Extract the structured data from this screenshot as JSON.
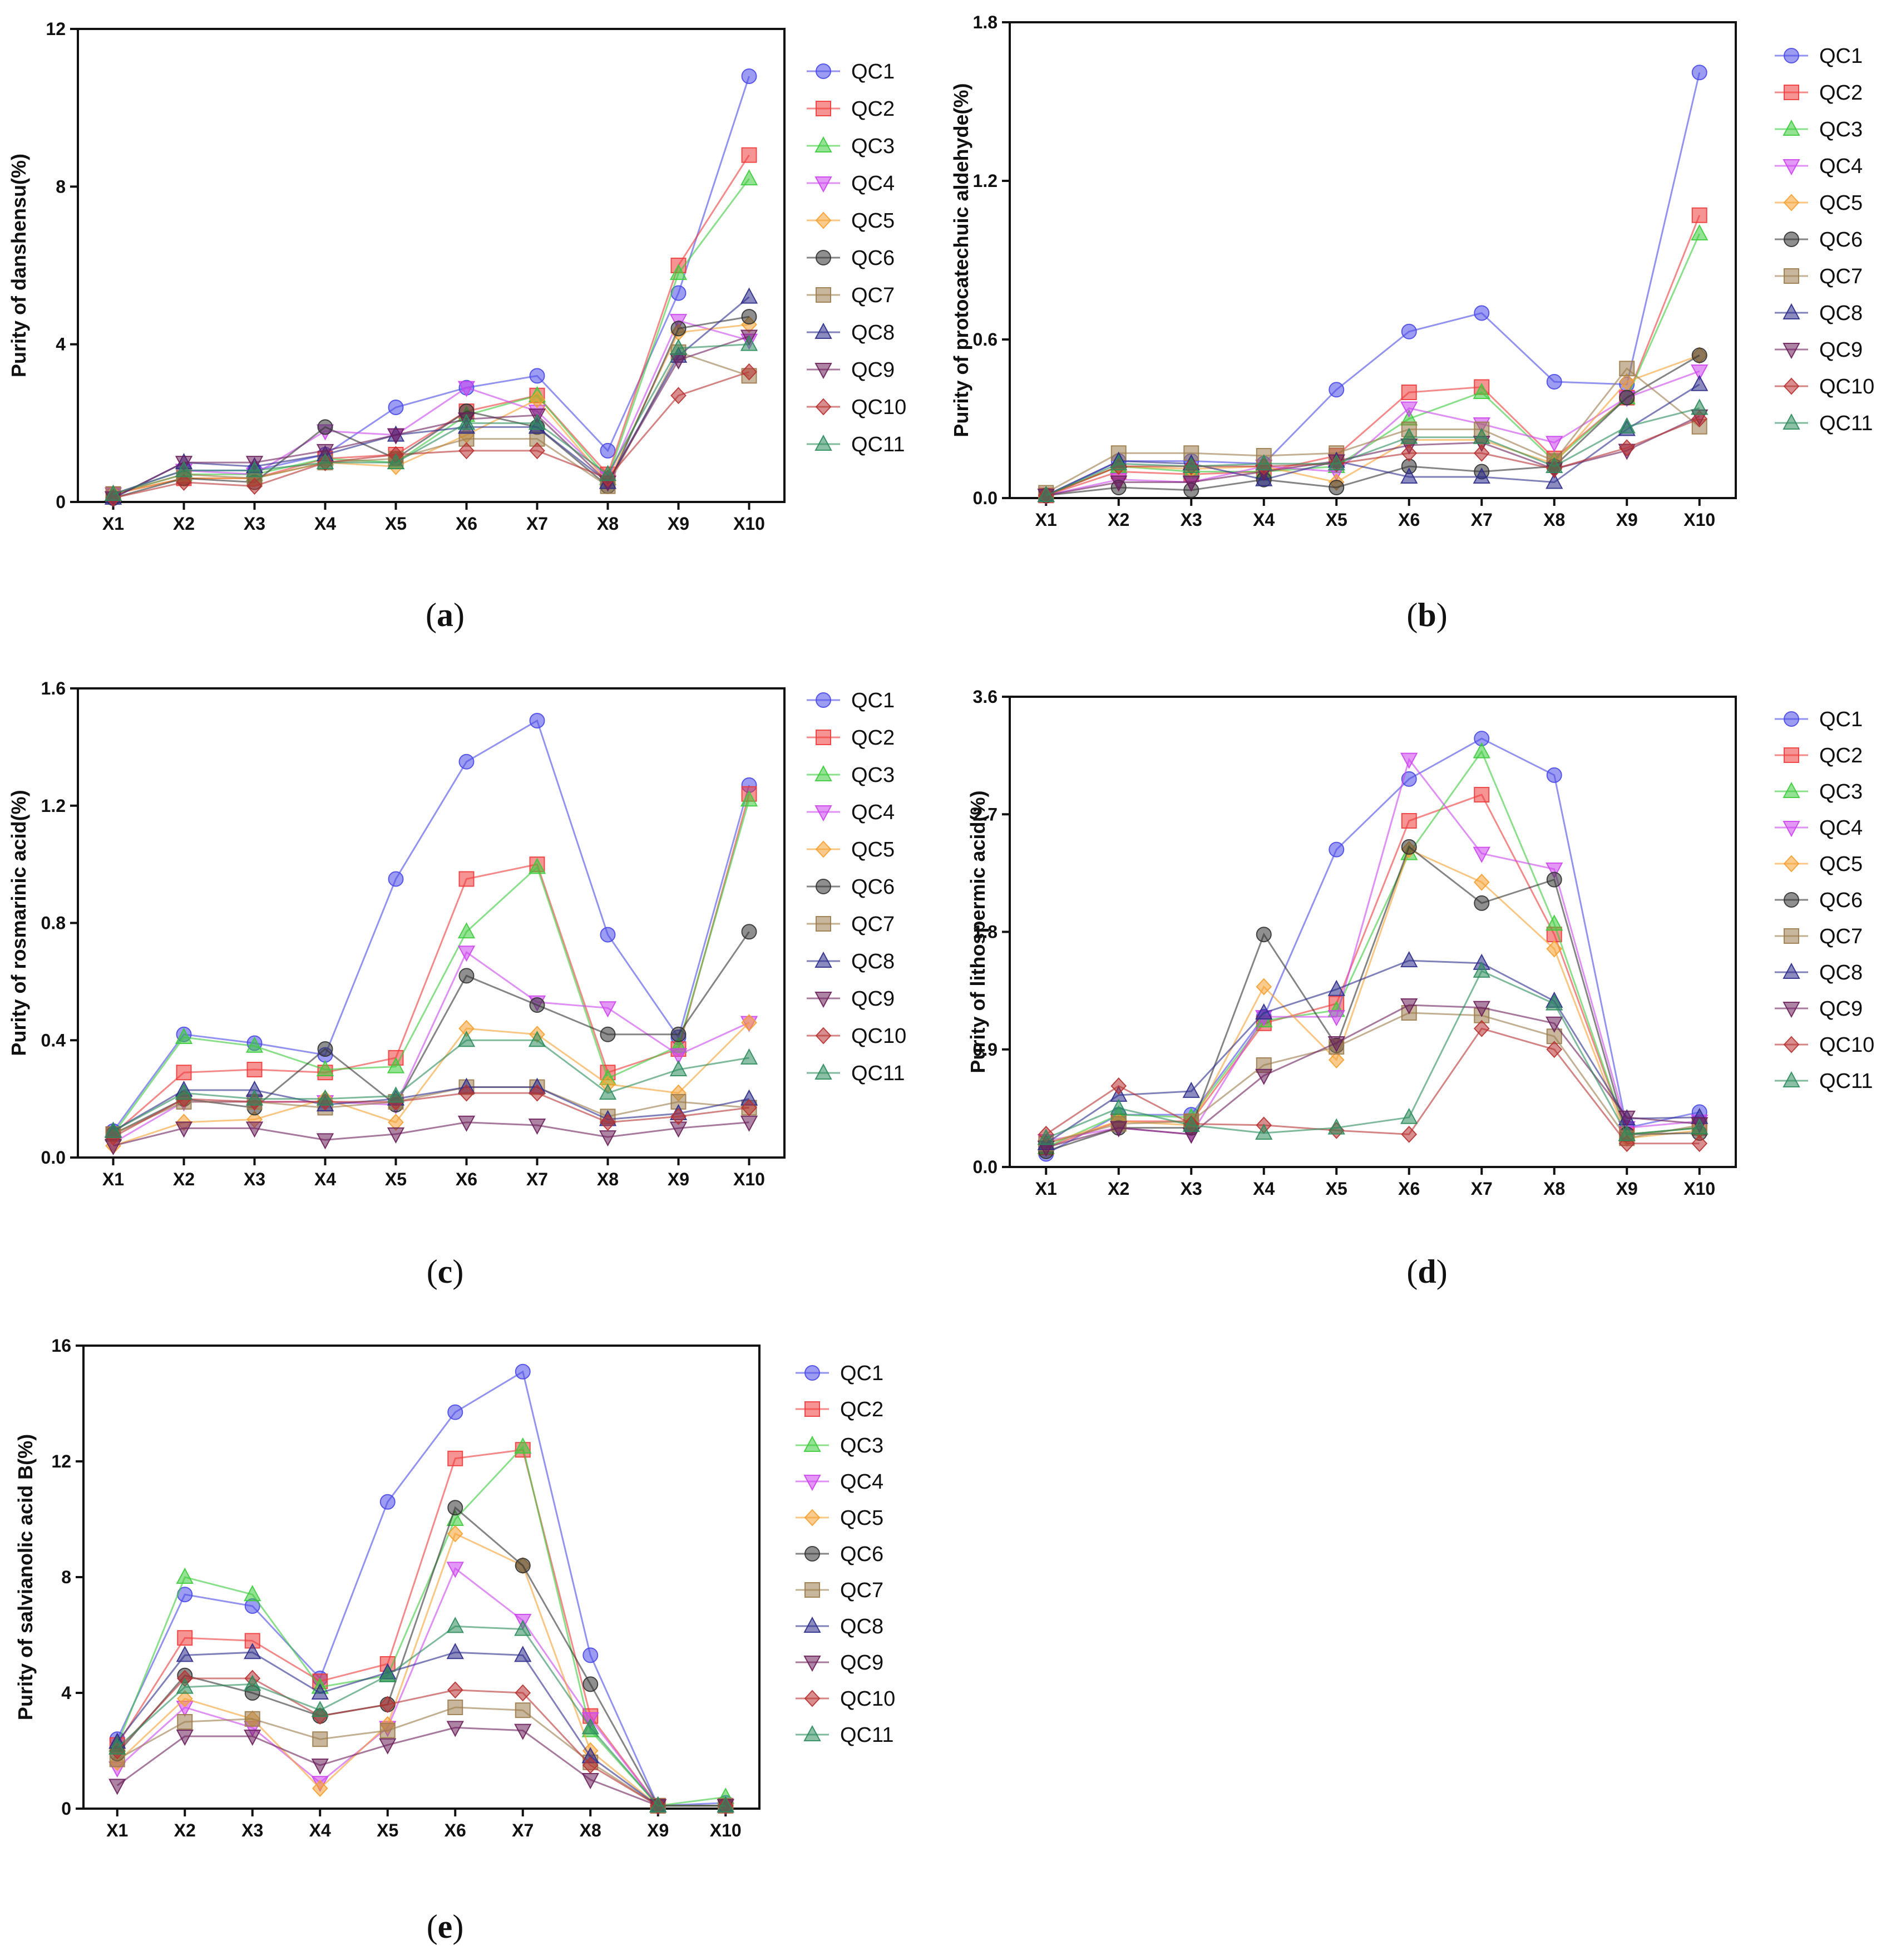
{
  "series_colors": [
    "#4a4ae8",
    "#ee3b3b",
    "#3ccc3c",
    "#cc44ee",
    "#f5a030",
    "#333333",
    "#9b7b4b",
    "#2c2c8c",
    "#6b1f5b",
    "#b83232",
    "#2c8c5c"
  ],
  "series_markers": [
    "circle",
    "square",
    "triangle-up",
    "triangle-down",
    "diamond",
    "circle",
    "square",
    "triangle-up",
    "triangle-down",
    "diamond",
    "triangle-up"
  ],
  "chart_data": [
    {
      "id": "a",
      "type": "line",
      "panel_label": "a",
      "ylabel": "Purity of danshensu(%)",
      "ylim": [
        0,
        12
      ],
      "yticks": [
        "0",
        "4",
        "8",
        "12"
      ],
      "categories": [
        "X1",
        "X2",
        "X3",
        "X4",
        "X5",
        "X6",
        "X7",
        "X8",
        "X9",
        "X10"
      ],
      "series": [
        {
          "name": "QC1",
          "values": [
            0.2,
            0.8,
            0.8,
            1.2,
            2.4,
            2.9,
            3.2,
            1.3,
            5.3,
            10.8
          ]
        },
        {
          "name": "QC2",
          "values": [
            0.2,
            0.6,
            0.6,
            1.1,
            1.2,
            2.3,
            2.7,
            0.7,
            6.0,
            8.8
          ]
        },
        {
          "name": "QC3",
          "values": [
            0.2,
            0.7,
            0.7,
            1.1,
            1.0,
            2.2,
            2.7,
            0.6,
            5.8,
            8.2
          ]
        },
        {
          "name": "QC4",
          "values": [
            0.2,
            0.8,
            0.7,
            1.8,
            1.7,
            2.9,
            2.3,
            0.6,
            4.6,
            4.1
          ]
        },
        {
          "name": "QC5",
          "values": [
            0.2,
            0.6,
            0.6,
            1.0,
            0.9,
            1.7,
            2.6,
            0.5,
            4.3,
            4.5
          ]
        },
        {
          "name": "QC6",
          "values": [
            0.1,
            0.6,
            0.5,
            1.9,
            1.1,
            2.3,
            1.9,
            0.4,
            4.4,
            4.7
          ]
        },
        {
          "name": "QC7",
          "values": [
            0.2,
            0.7,
            0.6,
            1.0,
            1.1,
            1.6,
            1.6,
            0.4,
            3.8,
            3.2
          ]
        },
        {
          "name": "QC8",
          "values": [
            0.1,
            1.0,
            0.9,
            1.2,
            1.7,
            1.9,
            1.9,
            0.5,
            3.7,
            5.2
          ]
        },
        {
          "name": "QC9",
          "values": [
            0.1,
            1.0,
            1.0,
            1.3,
            1.7,
            2.1,
            2.2,
            0.5,
            3.6,
            4.2
          ]
        },
        {
          "name": "QC10",
          "values": [
            0.1,
            0.5,
            0.4,
            1.0,
            1.2,
            1.3,
            1.3,
            0.6,
            2.7,
            3.3
          ]
        },
        {
          "name": "QC11",
          "values": [
            0.2,
            0.8,
            0.8,
            1.0,
            1.0,
            2.0,
            2.0,
            0.7,
            3.9,
            4.0
          ]
        }
      ]
    },
    {
      "id": "b",
      "type": "line",
      "panel_label": "b",
      "ylabel": "Purity of protocatechuic aldehyde(%)",
      "ylim": [
        0,
        1.8
      ],
      "yticks": [
        "0.0",
        "0.6",
        "1.2",
        "1.8"
      ],
      "categories": [
        "X1",
        "X2",
        "X3",
        "X4",
        "X5",
        "X6",
        "X7",
        "X8",
        "X9",
        "X10"
      ],
      "series": [
        {
          "name": "QC1",
          "values": [
            0.01,
            0.14,
            0.14,
            0.13,
            0.41,
            0.63,
            0.7,
            0.44,
            0.43,
            1.61
          ]
        },
        {
          "name": "QC2",
          "values": [
            0.01,
            0.1,
            0.09,
            0.1,
            0.16,
            0.4,
            0.42,
            0.15,
            0.38,
            1.07
          ]
        },
        {
          "name": "QC3",
          "values": [
            0.01,
            0.12,
            0.1,
            0.1,
            0.12,
            0.3,
            0.4,
            0.14,
            0.38,
            1.0
          ]
        },
        {
          "name": "QC4",
          "values": [
            0.01,
            0.07,
            0.06,
            0.12,
            0.1,
            0.34,
            0.28,
            0.21,
            0.38,
            0.48
          ]
        },
        {
          "name": "QC5",
          "values": [
            0.01,
            0.12,
            0.11,
            0.12,
            0.06,
            0.22,
            0.22,
            0.13,
            0.44,
            0.54
          ]
        },
        {
          "name": "QC6",
          "values": [
            0.01,
            0.04,
            0.03,
            0.07,
            0.04,
            0.12,
            0.1,
            0.12,
            0.38,
            0.54
          ]
        },
        {
          "name": "QC7",
          "values": [
            0.02,
            0.17,
            0.17,
            0.16,
            0.17,
            0.26,
            0.26,
            0.14,
            0.49,
            0.27
          ]
        },
        {
          "name": "QC8",
          "values": [
            0.01,
            0.14,
            0.13,
            0.07,
            0.14,
            0.08,
            0.08,
            0.06,
            0.26,
            0.43
          ]
        },
        {
          "name": "QC9",
          "values": [
            0.01,
            0.06,
            0.06,
            0.1,
            0.14,
            0.2,
            0.21,
            0.11,
            0.18,
            0.31
          ]
        },
        {
          "name": "QC10",
          "values": [
            0.01,
            0.12,
            0.12,
            0.12,
            0.13,
            0.17,
            0.17,
            0.11,
            0.19,
            0.3
          ]
        },
        {
          "name": "QC11",
          "values": [
            0.01,
            0.13,
            0.12,
            0.13,
            0.13,
            0.23,
            0.23,
            0.12,
            0.27,
            0.34
          ]
        }
      ]
    },
    {
      "id": "c",
      "type": "line",
      "panel_label": "c",
      "ylabel": "Purity of rosmarinic acid(%)",
      "ylim": [
        0,
        1.6
      ],
      "yticks": [
        "0.0",
        "0.4",
        "0.8",
        "1.2",
        "1.6"
      ],
      "categories": [
        "X1",
        "X2",
        "X3",
        "X4",
        "X5",
        "X6",
        "X7",
        "X8",
        "X9",
        "X10"
      ],
      "series": [
        {
          "name": "QC1",
          "values": [
            0.09,
            0.42,
            0.39,
            0.35,
            0.95,
            1.35,
            1.49,
            0.76,
            0.41,
            1.27
          ]
        },
        {
          "name": "QC2",
          "values": [
            0.08,
            0.29,
            0.3,
            0.29,
            0.34,
            0.95,
            1.0,
            0.29,
            0.37,
            1.24
          ]
        },
        {
          "name": "QC3",
          "values": [
            0.08,
            0.41,
            0.38,
            0.3,
            0.31,
            0.77,
            0.99,
            0.27,
            0.38,
            1.22
          ]
        },
        {
          "name": "QC4",
          "values": [
            0.05,
            0.19,
            0.19,
            0.19,
            0.18,
            0.7,
            0.53,
            0.51,
            0.35,
            0.46
          ]
        },
        {
          "name": "QC5",
          "values": [
            0.04,
            0.12,
            0.13,
            0.2,
            0.12,
            0.44,
            0.42,
            0.25,
            0.22,
            0.46
          ]
        },
        {
          "name": "QC6",
          "values": [
            0.08,
            0.2,
            0.17,
            0.37,
            0.18,
            0.62,
            0.52,
            0.42,
            0.42,
            0.77
          ]
        },
        {
          "name": "QC7",
          "values": [
            0.08,
            0.19,
            0.19,
            0.17,
            0.19,
            0.24,
            0.24,
            0.14,
            0.19,
            0.17
          ]
        },
        {
          "name": "QC8",
          "values": [
            0.09,
            0.23,
            0.23,
            0.18,
            0.2,
            0.24,
            0.24,
            0.13,
            0.15,
            0.2
          ]
        },
        {
          "name": "QC9",
          "values": [
            0.04,
            0.1,
            0.1,
            0.06,
            0.08,
            0.12,
            0.11,
            0.07,
            0.1,
            0.12
          ]
        },
        {
          "name": "QC10",
          "values": [
            0.07,
            0.2,
            0.19,
            0.19,
            0.19,
            0.22,
            0.22,
            0.12,
            0.14,
            0.17
          ]
        },
        {
          "name": "QC11",
          "values": [
            0.09,
            0.22,
            0.2,
            0.2,
            0.21,
            0.4,
            0.4,
            0.22,
            0.3,
            0.34
          ]
        }
      ]
    },
    {
      "id": "d",
      "type": "line",
      "panel_label": "d",
      "ylabel": "Purity of lithospermic acid(%)",
      "ylim": [
        0,
        3.6
      ],
      "yticks": [
        "0.0",
        "0.9",
        "1.8",
        "2.7",
        "3.6"
      ],
      "categories": [
        "X1",
        "X2",
        "X3",
        "X4",
        "X5",
        "X6",
        "X7",
        "X8",
        "X9",
        "X10"
      ],
      "series": [
        {
          "name": "QC1",
          "values": [
            0.1,
            0.4,
            0.4,
            1.15,
            2.43,
            2.97,
            3.28,
            3.0,
            0.3,
            0.42
          ]
        },
        {
          "name": "QC2",
          "values": [
            0.15,
            0.35,
            0.35,
            1.1,
            1.25,
            2.65,
            2.85,
            1.78,
            0.25,
            0.3
          ]
        },
        {
          "name": "QC3",
          "values": [
            0.15,
            0.4,
            0.38,
            1.12,
            1.2,
            2.4,
            3.18,
            1.86,
            0.25,
            0.3
          ]
        },
        {
          "name": "QC4",
          "values": [
            0.2,
            0.3,
            0.25,
            1.15,
            1.15,
            3.12,
            2.4,
            2.28,
            0.3,
            0.35
          ]
        },
        {
          "name": "QC5",
          "values": [
            0.18,
            0.35,
            0.32,
            1.38,
            0.82,
            2.43,
            2.18,
            1.67,
            0.22,
            0.28
          ]
        },
        {
          "name": "QC6",
          "values": [
            0.12,
            0.3,
            0.3,
            1.78,
            0.93,
            2.45,
            2.02,
            2.2,
            0.25,
            0.26
          ]
        },
        {
          "name": "QC7",
          "values": [
            0.18,
            0.33,
            0.35,
            0.78,
            0.92,
            1.18,
            1.16,
            1.0,
            0.22,
            0.32
          ]
        },
        {
          "name": "QC8",
          "values": [
            0.18,
            0.55,
            0.58,
            1.18,
            1.36,
            1.58,
            1.56,
            1.27,
            0.37,
            0.38
          ]
        },
        {
          "name": "QC9",
          "values": [
            0.15,
            0.3,
            0.25,
            0.7,
            0.95,
            1.24,
            1.22,
            1.1,
            0.38,
            0.33
          ]
        },
        {
          "name": "QC10",
          "values": [
            0.25,
            0.62,
            0.33,
            0.32,
            0.28,
            0.25,
            1.06,
            0.9,
            0.18,
            0.18
          ]
        },
        {
          "name": "QC11",
          "values": [
            0.22,
            0.45,
            0.32,
            0.26,
            0.3,
            0.38,
            1.5,
            1.25,
            0.25,
            0.3
          ]
        }
      ]
    },
    {
      "id": "e",
      "type": "line",
      "panel_label": "e",
      "ylabel": "Purity of salvianolic acid B(%)",
      "ylim": [
        0,
        16
      ],
      "yticks": [
        "0",
        "4",
        "8",
        "12",
        "16"
      ],
      "categories": [
        "X1",
        "X2",
        "X3",
        "X4",
        "X5",
        "X6",
        "X7",
        "X8",
        "X9",
        "X10"
      ],
      "series": [
        {
          "name": "QC1",
          "values": [
            2.4,
            7.4,
            7.0,
            4.5,
            10.6,
            13.7,
            15.1,
            5.3,
            0.1,
            0.2
          ]
        },
        {
          "name": "QC2",
          "values": [
            2.2,
            5.9,
            5.8,
            4.4,
            5.0,
            12.1,
            12.4,
            3.2,
            0.1,
            0.1
          ]
        },
        {
          "name": "QC3",
          "values": [
            2.2,
            8.0,
            7.4,
            4.2,
            4.6,
            10.0,
            12.5,
            2.7,
            0.1,
            0.4
          ]
        },
        {
          "name": "QC4",
          "values": [
            1.4,
            3.5,
            2.8,
            0.9,
            2.8,
            8.3,
            6.5,
            3.1,
            0.1,
            0.1
          ]
        },
        {
          "name": "QC5",
          "values": [
            1.6,
            3.8,
            3.1,
            0.7,
            2.9,
            9.5,
            8.4,
            2.0,
            0.1,
            0.1
          ]
        },
        {
          "name": "QC6",
          "values": [
            1.9,
            4.6,
            4.0,
            3.2,
            3.6,
            10.4,
            8.4,
            4.3,
            0.1,
            0.1
          ]
        },
        {
          "name": "QC7",
          "values": [
            1.7,
            3.0,
            3.1,
            2.4,
            2.7,
            3.5,
            3.4,
            1.6,
            0.1,
            0.1
          ]
        },
        {
          "name": "QC8",
          "values": [
            2.3,
            5.3,
            5.4,
            4.0,
            4.7,
            5.4,
            5.3,
            1.8,
            0.1,
            0.1
          ]
        },
        {
          "name": "QC9",
          "values": [
            0.8,
            2.5,
            2.5,
            1.5,
            2.2,
            2.8,
            2.7,
            1.0,
            0.1,
            0.1
          ]
        },
        {
          "name": "QC10",
          "values": [
            2.0,
            4.5,
            4.5,
            3.2,
            3.6,
            4.1,
            4.0,
            1.5,
            0.1,
            0.1
          ]
        },
        {
          "name": "QC11",
          "values": [
            2.1,
            4.2,
            4.3,
            3.4,
            4.6,
            6.3,
            6.2,
            2.8,
            0.1,
            0.1
          ]
        }
      ]
    }
  ]
}
